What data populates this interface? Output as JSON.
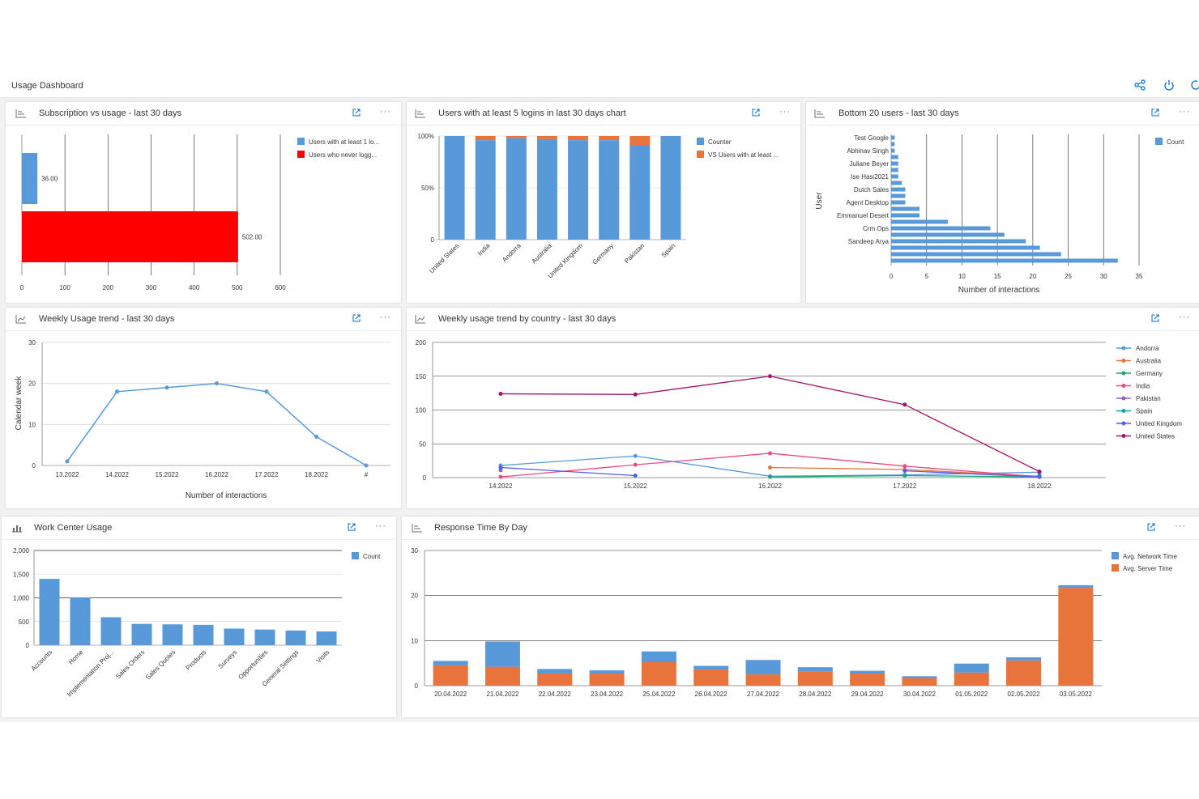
{
  "dashboard": {
    "title": "Usage Dashboard",
    "header_icons": [
      "share-icon",
      "power-icon",
      "refresh-icon"
    ]
  },
  "tiles": {
    "sub": {
      "title": "Subscription vs usage - last 30 days"
    },
    "logins": {
      "title": "Users with at least 5 logins in last 30 days chart"
    },
    "bottom": {
      "title": "Bottom 20 users - last 30 days"
    },
    "weekly": {
      "title": "Weekly Usage trend - last 30 days"
    },
    "country": {
      "title": "Weekly usage trend by country - last 30 days"
    },
    "work": {
      "title": "Work Center Usage"
    },
    "resp": {
      "title": "Response Time By Day"
    }
  },
  "colors": {
    "blue": "#5899da",
    "red": "#ff0000",
    "orange": "#e8743b"
  },
  "chart_data": [
    {
      "id": "sub",
      "type": "bar",
      "orientation": "horizontal",
      "series": [
        {
          "name": "Users with at least 1 lo...",
          "value": 36,
          "label": "36.00",
          "color": "#5899da"
        },
        {
          "name": "Users who never logg...",
          "value": 502,
          "label": "502.00",
          "color": "#ff0000"
        }
      ],
      "xlim": [
        0,
        600
      ],
      "xticks": [
        "0",
        "100",
        "200",
        "300",
        "400",
        "500",
        "600"
      ],
      "grid": true,
      "legend": "top-right"
    },
    {
      "id": "logins",
      "type": "bar",
      "stacked": "percent",
      "categories": [
        "United States",
        "India",
        "Andorra",
        "Australia",
        "United Kingdom",
        "Germany",
        "Pakistan",
        "Spain"
      ],
      "series": [
        {
          "name": "Counter",
          "color": "#5899da",
          "values": [
            100,
            96,
            98,
            97,
            96,
            96,
            91,
            100
          ]
        },
        {
          "name": "VS Users with at least ...",
          "color": "#e8743b",
          "values": [
            0,
            4,
            2,
            3,
            4,
            4,
            9,
            0
          ]
        }
      ],
      "yticks": [
        "0",
        "50%",
        "100%"
      ],
      "legend": "top-right"
    },
    {
      "id": "bottom",
      "type": "bar",
      "orientation": "horizontal",
      "categories": [
        "Test Google",
        "",
        "Abhinav Singh",
        "",
        "Juliane Beyer",
        "",
        "Ise Hasi2021",
        "",
        "Dutch Sales",
        "",
        "Agent Desktop",
        "",
        "Emmanuel Desert",
        "",
        "Crm Ops",
        "",
        "Sandeep Arya",
        "",
        "",
        ""
      ],
      "series": [
        {
          "name": "Count",
          "color": "#5899da",
          "values": [
            0.5,
            0.5,
            0.5,
            1,
            1,
            1,
            1,
            1.5,
            2,
            2,
            2,
            4,
            4,
            8,
            14,
            16,
            19,
            21,
            24,
            32
          ]
        }
      ],
      "xlim": [
        0,
        35
      ],
      "xticks": [
        "0",
        "5",
        "10",
        "15",
        "20",
        "25",
        "30",
        "35"
      ],
      "xlabel": "Number of interactions",
      "ylabel": "User",
      "legend": "top-right"
    },
    {
      "id": "weekly",
      "type": "line",
      "x": [
        "13.2022",
        "14.2022",
        "15.2022",
        "16.2022",
        "17.2022",
        "18.2022",
        "#"
      ],
      "series": [
        {
          "name": "",
          "color": "#5899da",
          "values": [
            1,
            18,
            19,
            20,
            18,
            7,
            0
          ]
        }
      ],
      "ylim": [
        0,
        30
      ],
      "yticks": [
        "0",
        "10",
        "20",
        "30"
      ],
      "xlabel": "Number of interactions",
      "ylabel": "Calendar week"
    },
    {
      "id": "country",
      "type": "line",
      "x": [
        "14.2022",
        "15.2022",
        "16.2022",
        "17.2022",
        "18.2022"
      ],
      "ylim": [
        0,
        200
      ],
      "yticks": [
        "0",
        "50",
        "100",
        "150",
        "200"
      ],
      "series": [
        {
          "name": "Andorra",
          "color": "#5899da",
          "values": [
            18,
            32,
            2,
            4,
            8
          ]
        },
        {
          "name": "Australia",
          "color": "#e8743b",
          "values": [
            null,
            null,
            15,
            12,
            2
          ]
        },
        {
          "name": "Germany",
          "color": "#19a979",
          "values": [
            null,
            null,
            1,
            3,
            1
          ]
        },
        {
          "name": "India",
          "color": "#ed4a7b",
          "values": [
            1,
            19,
            36,
            17,
            1
          ]
        },
        {
          "name": "Pakistan",
          "color": "#945ecf",
          "values": [
            11,
            null,
            null,
            null,
            7
          ]
        },
        {
          "name": "Spain",
          "color": "#13a4b4",
          "values": [
            null,
            null,
            null,
            null,
            3
          ]
        },
        {
          "name": "United Kingdom",
          "color": "#525df4",
          "values": [
            15,
            3,
            null,
            10,
            1
          ]
        },
        {
          "name": "United States",
          "color": "#a2146c",
          "values": [
            124,
            123,
            150,
            108,
            9
          ]
        }
      ],
      "legend": "right"
    },
    {
      "id": "work",
      "type": "bar",
      "categories": [
        "Accounts",
        "Home",
        "Implementation Proj...",
        "Sales Orders",
        "Sales Quotes",
        "Products",
        "Surveys",
        "Opportunities",
        "General Settings",
        "Visits"
      ],
      "series": [
        {
          "name": "Count",
          "color": "#5899da",
          "values": [
            1400,
            1010,
            590,
            450,
            440,
            430,
            350,
            330,
            310,
            290
          ]
        }
      ],
      "ylim": [
        0,
        2000
      ],
      "yticks": [
        "0",
        "500",
        "1,000",
        "1,500",
        "2,000"
      ],
      "legend": "top-right"
    },
    {
      "id": "resp",
      "type": "bar",
      "stacked": true,
      "categories": [
        "20.04.2022",
        "21.04.2022",
        "22.04.2022",
        "23.04.2022",
        "25.04.2022",
        "26.04.2022",
        "27.04.2022",
        "28.04.2022",
        "29.04.2022",
        "30.04.2022",
        "01.05.2022",
        "02.05.2022",
        "03.05.2022"
      ],
      "series": [
        {
          "name": "Avg. Server Time",
          "color": "#e8743b",
          "values": [
            4.5,
            4.2,
            2.7,
            2.7,
            5.3,
            3.6,
            2.5,
            3.2,
            2.7,
            1.7,
            2.9,
            5.6,
            21.7
          ]
        },
        {
          "name": "Avg. Network Time",
          "color": "#5899da",
          "values": [
            1.0,
            5.6,
            1.0,
            0.7,
            2.3,
            0.8,
            3.2,
            0.9,
            0.6,
            0.4,
            2.0,
            0.7,
            0.6
          ]
        }
      ],
      "ylim": [
        0,
        30
      ],
      "yticks": [
        "0",
        "10",
        "20",
        "30"
      ],
      "legend": "top-right"
    }
  ]
}
